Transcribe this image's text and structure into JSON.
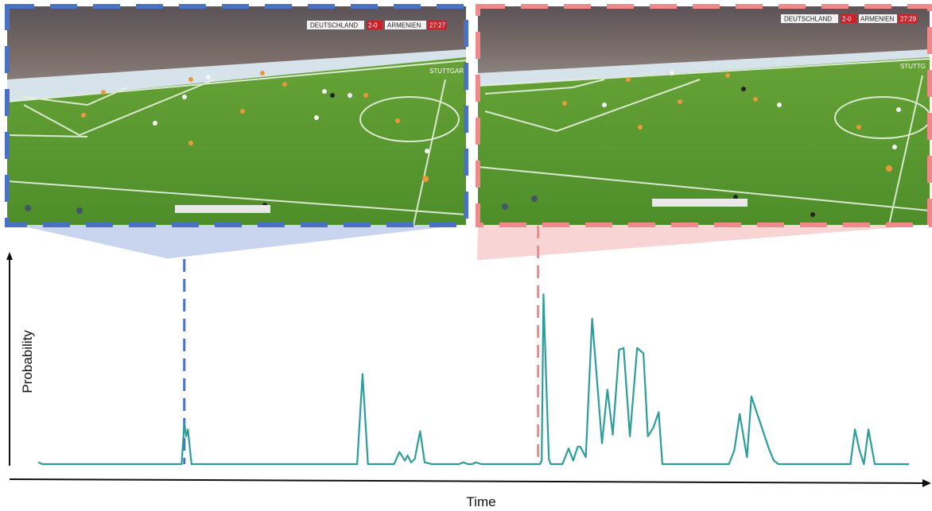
{
  "frames": [
    {
      "id": "left",
      "score_home": "DEUTSCHLAND",
      "score": "2-0",
      "score_away": "ARMENIEN",
      "clock": "27:27",
      "sponsor": "STUTTGAR",
      "border_color": "#4a72c4",
      "connector_color": "#c9d5ee",
      "marker_time": 0.18
    },
    {
      "id": "right",
      "score_home": "DEUTSCHLAND",
      "score": "2-0",
      "score_away": "ARMENIEN",
      "clock": "27:29",
      "sponsor": "STUTTG",
      "border_color": "#f08a8a",
      "connector_color": "#f9d4d4",
      "marker_time": 0.573
    }
  ],
  "chart_data": {
    "type": "line",
    "xlabel": "Time",
    "ylabel": "Probability",
    "line_color": "#2a9d9c",
    "xlim": [
      0,
      1
    ],
    "ylim": [
      0,
      1
    ],
    "series": [
      {
        "x": [
          0.018,
          0.022,
          0.177,
          0.18,
          0.182,
          0.184,
          0.188,
          0.372,
          0.378,
          0.384,
          0.413,
          0.419,
          0.425,
          0.428,
          0.432,
          0.436,
          0.442,
          0.447,
          0.455,
          0.485,
          0.49,
          0.495,
          0.5,
          0.504,
          0.51,
          0.516,
          0.575,
          0.577,
          0.579,
          0.582,
          0.585,
          0.587,
          0.6,
          0.607,
          0.612,
          0.617,
          0.62,
          0.626,
          0.633,
          0.644,
          0.65,
          0.656,
          0.663,
          0.668,
          0.675,
          0.683,
          0.69,
          0.695,
          0.701,
          0.707,
          0.711,
          0.72,
          0.73,
          0.785,
          0.791,
          0.797,
          0.805,
          0.81,
          0.83,
          0.835,
          0.84,
          0.92,
          0.925,
          0.93,
          0.935,
          0.94,
          0.947,
          0.955
        ]
      }
    ],
    "values": [
      0.01,
      0.0,
      0.0,
      0.24,
      0.16,
      0.2,
      0.0,
      0.0,
      0.52,
      0.0,
      0.0,
      0.07,
      0.02,
      0.05,
      0.01,
      0.03,
      0.19,
      0.01,
      0.0,
      0.0,
      0.01,
      0.0,
      0.0,
      0.01,
      0.0,
      0.0,
      0.0,
      0.02,
      0.98,
      0.49,
      0.03,
      0.0,
      0.0,
      0.09,
      0.02,
      0.1,
      0.1,
      0.04,
      0.84,
      0.12,
      0.43,
      0.17,
      0.66,
      0.67,
      0.16,
      0.67,
      0.64,
      0.16,
      0.21,
      0.3,
      0.0,
      0.0,
      0.0,
      0.0,
      0.08,
      0.29,
      0.04,
      0.39,
      0.08,
      0.02,
      0.0,
      0.0,
      0.2,
      0.08,
      0.0,
      0.2,
      0.0,
      0.0
    ]
  }
}
